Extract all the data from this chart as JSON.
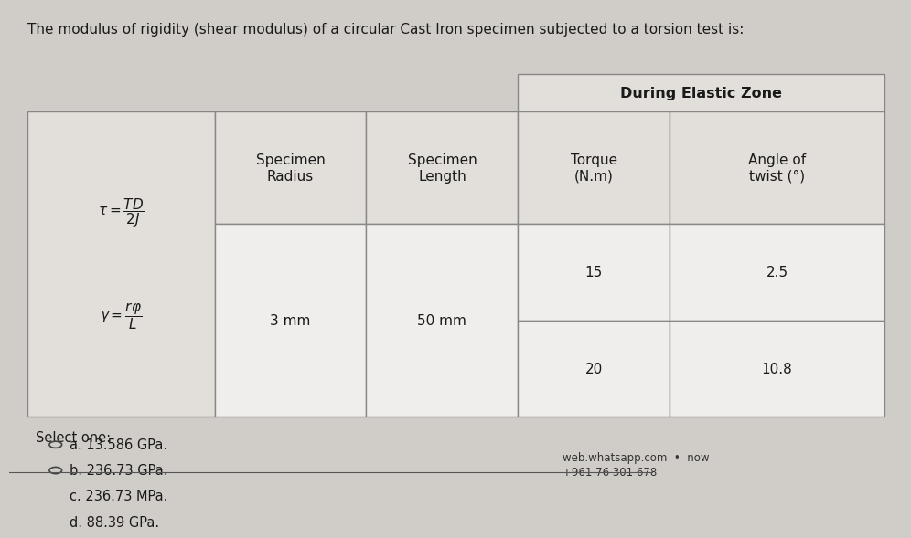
{
  "bg_color": "#d0ccc8",
  "title_text": "The modulus of rigidity (shear modulus) of a circular Cast Iron specimen subjected to a torsion test is:",
  "title_fontsize": 11,
  "during_elastic_zone": "During Elastic Zone",
  "row1_radius": "3 mm",
  "row1_length": "50 mm",
  "torque1": "15",
  "twist1": "2.5",
  "torque2": "20",
  "twist2": "10.8",
  "select_one": "Select one:",
  "options": [
    "a. 13.586 GPa.",
    "b. 236.73 GPa.",
    "c. 236.73 MPa.",
    "d. 88.39 GPa."
  ],
  "footer_line1": "web.whatsapp.com  •  now",
  "footer_line2": "+961 76 301 678",
  "table_bg": "#f0eeec",
  "header_bg": "#e2deda",
  "elastic_header_bg": "#e2deda",
  "cell_text_color": "#1a1a1a",
  "option_fontsize": 10.5,
  "select_fontsize": 10.5
}
